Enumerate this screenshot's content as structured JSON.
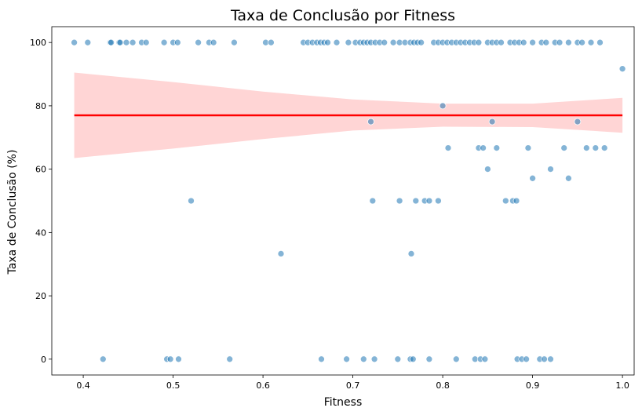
{
  "chart_data": {
    "type": "scatter",
    "title": "Taxa de Conclusão por Fitness",
    "xlabel": "Fitness",
    "ylabel": "Taxa de Conclusão (%)",
    "xlim": [
      0.365,
      1.013
    ],
    "ylim": [
      -5,
      105
    ],
    "xticks": [
      0.4,
      0.5,
      0.6,
      0.7,
      0.8,
      0.9,
      1.0
    ],
    "xtick_labels": [
      "0.4",
      "0.5",
      "0.6",
      "0.7",
      "0.8",
      "0.9",
      "1.0"
    ],
    "yticks": [
      0,
      20,
      40,
      60,
      80,
      100
    ],
    "ytick_labels": [
      "0",
      "20",
      "40",
      "60",
      "80",
      "100"
    ],
    "grid": false,
    "colors": {
      "points": "#1f77b4",
      "regression_line": "#ff0000",
      "confidence_band": "#ffb3b3"
    },
    "regression": {
      "x": [
        0.39,
        1.0
      ],
      "y": [
        77,
        77
      ]
    },
    "confidence_band": {
      "x": [
        0.39,
        0.5,
        0.6,
        0.7,
        0.8,
        0.9,
        1.0
      ],
      "upper": [
        90.5,
        87.5,
        84.5,
        82.0,
        80.7,
        80.7,
        82.5
      ],
      "lower": [
        63.5,
        66.5,
        69.5,
        72.2,
        73.4,
        73.3,
        71.5
      ]
    },
    "series": [
      {
        "values": [
          [
            0.39,
            100
          ],
          [
            0.405,
            100
          ],
          [
            0.43,
            100
          ],
          [
            0.431,
            100
          ],
          [
            0.44,
            100
          ],
          [
            0.441,
            100
          ],
          [
            0.448,
            100
          ],
          [
            0.455,
            100
          ],
          [
            0.465,
            100
          ],
          [
            0.47,
            100
          ],
          [
            0.49,
            100
          ],
          [
            0.5,
            100
          ],
          [
            0.505,
            100
          ],
          [
            0.528,
            100
          ],
          [
            0.54,
            100
          ],
          [
            0.545,
            100
          ],
          [
            0.568,
            100
          ],
          [
            0.603,
            100
          ],
          [
            0.609,
            100
          ],
          [
            0.645,
            100
          ],
          [
            0.65,
            100
          ],
          [
            0.655,
            100
          ],
          [
            0.66,
            100
          ],
          [
            0.664,
            100
          ],
          [
            0.668,
            100
          ],
          [
            0.672,
            100
          ],
          [
            0.682,
            100
          ],
          [
            0.695,
            100
          ],
          [
            0.703,
            100
          ],
          [
            0.708,
            100
          ],
          [
            0.712,
            100
          ],
          [
            0.716,
            100
          ],
          [
            0.72,
            100
          ],
          [
            0.725,
            100
          ],
          [
            0.73,
            100
          ],
          [
            0.735,
            100
          ],
          [
            0.745,
            100
          ],
          [
            0.752,
            100
          ],
          [
            0.758,
            100
          ],
          [
            0.764,
            100
          ],
          [
            0.768,
            100
          ],
          [
            0.772,
            100
          ],
          [
            0.776,
            100
          ],
          [
            0.79,
            100
          ],
          [
            0.795,
            100
          ],
          [
            0.8,
            100
          ],
          [
            0.805,
            100
          ],
          [
            0.81,
            100
          ],
          [
            0.815,
            100
          ],
          [
            0.82,
            100
          ],
          [
            0.825,
            100
          ],
          [
            0.83,
            100
          ],
          [
            0.835,
            100
          ],
          [
            0.84,
            100
          ],
          [
            0.85,
            100
          ],
          [
            0.855,
            100
          ],
          [
            0.86,
            100
          ],
          [
            0.865,
            100
          ],
          [
            0.875,
            100
          ],
          [
            0.88,
            100
          ],
          [
            0.885,
            100
          ],
          [
            0.89,
            100
          ],
          [
            0.9,
            100
          ],
          [
            0.91,
            100
          ],
          [
            0.915,
            100
          ],
          [
            0.925,
            100
          ],
          [
            0.93,
            100
          ],
          [
            0.94,
            100
          ],
          [
            0.95,
            100
          ],
          [
            0.955,
            100
          ],
          [
            0.965,
            100
          ],
          [
            0.975,
            100
          ],
          [
            1.0,
            91.7
          ],
          [
            0.8,
            80
          ],
          [
            0.72,
            75
          ],
          [
            0.855,
            75
          ],
          [
            0.95,
            75
          ],
          [
            0.806,
            66.7
          ],
          [
            0.84,
            66.7
          ],
          [
            0.845,
            66.7
          ],
          [
            0.86,
            66.7
          ],
          [
            0.895,
            66.7
          ],
          [
            0.935,
            66.7
          ],
          [
            0.96,
            66.7
          ],
          [
            0.97,
            66.7
          ],
          [
            0.98,
            66.7
          ],
          [
            0.85,
            60
          ],
          [
            0.92,
            60
          ],
          [
            0.9,
            57.1
          ],
          [
            0.94,
            57.1
          ],
          [
            0.52,
            50
          ],
          [
            0.722,
            50
          ],
          [
            0.752,
            50
          ],
          [
            0.77,
            50
          ],
          [
            0.78,
            50
          ],
          [
            0.785,
            50
          ],
          [
            0.795,
            50
          ],
          [
            0.87,
            50
          ],
          [
            0.878,
            50
          ],
          [
            0.882,
            50
          ],
          [
            0.62,
            33.3
          ],
          [
            0.765,
            33.3
          ],
          [
            0.422,
            0
          ],
          [
            0.493,
            0
          ],
          [
            0.497,
            0
          ],
          [
            0.506,
            0
          ],
          [
            0.563,
            0
          ],
          [
            0.665,
            0
          ],
          [
            0.693,
            0
          ],
          [
            0.712,
            0
          ],
          [
            0.724,
            0
          ],
          [
            0.75,
            0
          ],
          [
            0.764,
            0
          ],
          [
            0.767,
            0
          ],
          [
            0.785,
            0
          ],
          [
            0.815,
            0
          ],
          [
            0.836,
            0
          ],
          [
            0.842,
            0
          ],
          [
            0.847,
            0
          ],
          [
            0.883,
            0
          ],
          [
            0.888,
            0
          ],
          [
            0.893,
            0
          ],
          [
            0.908,
            0
          ],
          [
            0.913,
            0
          ],
          [
            0.92,
            0
          ]
        ]
      }
    ]
  }
}
